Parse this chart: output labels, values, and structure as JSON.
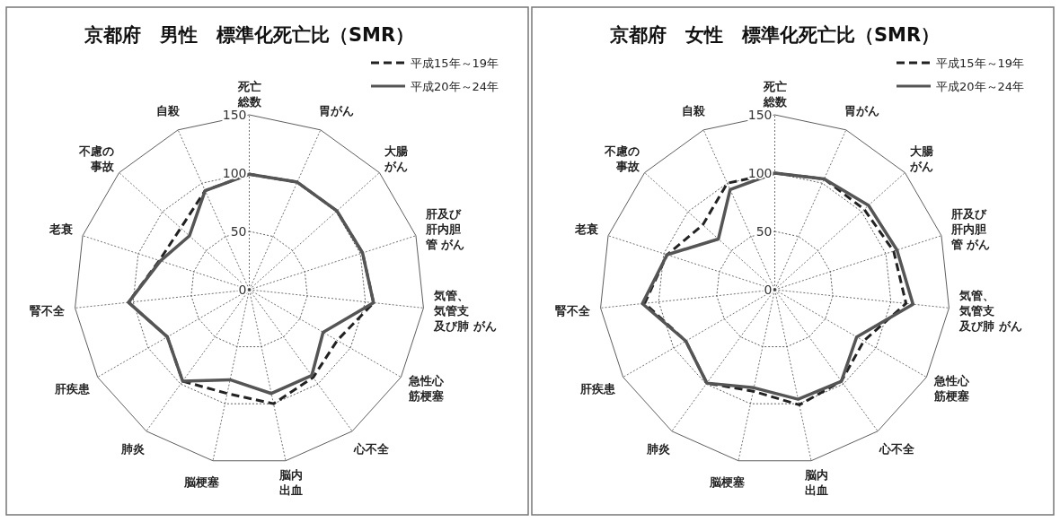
{
  "chart_data": [
    {
      "type": "radar",
      "title": "京都府　男性　標準化死亡比（SMR）",
      "categories": [
        "死亡総数",
        "胃がん",
        "大腸がん",
        "肝及び肝内胆管 がん",
        "気管、気管支及び肺 がん",
        "急性心筋梗塞",
        "心不全",
        "脳内出血",
        "脳梗塞",
        "肺炎",
        "肝疾患",
        "腎不全",
        "老衰",
        "不慮の事故",
        "自殺"
      ],
      "ylim": [
        0,
        150
      ],
      "yticks": [
        0,
        50,
        100,
        150
      ],
      "grid": true,
      "legend": "top right",
      "marker": "none",
      "series": [
        {
          "name": "平成15年～19年",
          "color": "#222222",
          "line_style": "dashed",
          "values": [
            99,
            101,
            101,
            102,
            107,
            87,
            93,
            100,
            91,
            97,
            81,
            104,
            81,
            79,
            93
          ]
        },
        {
          "name": "平成20年～24年",
          "color": "#555555",
          "line_style": "solid",
          "values": [
            99,
            101,
            101,
            102,
            107,
            73,
            91,
            91,
            79,
            97,
            81,
            104,
            80,
            69,
            93
          ]
        }
      ]
    },
    {
      "type": "radar",
      "title": "京都府　女性　標準化死亡比（SMR）",
      "categories": [
        "死亡総数",
        "胃がん",
        "大腸がん",
        "肝及び肝内胆管 がん",
        "気管、気管支及び肺 がん",
        "急性心筋梗塞",
        "心不全",
        "脳内出血",
        "脳梗塞",
        "肺炎",
        "肝疾患",
        "腎不全",
        "老衰",
        "不慮の事故",
        "自殺"
      ],
      "ylim": [
        0,
        150
      ],
      "yticks": [
        0,
        50,
        100,
        150
      ],
      "grid": true,
      "legend": "top right",
      "marker": "none",
      "series": [
        {
          "name": "平成15年～19年",
          "color": "#222222",
          "line_style": "dashed",
          "values": [
            100,
            104,
            103,
            107,
            113,
            88,
            97,
            101,
            89,
            99,
            88,
            112,
            97,
            83,
            100
          ]
        },
        {
          "name": "平成20年～24年",
          "color": "#555555",
          "line_style": "solid",
          "values": [
            100,
            104,
            108,
            110,
            119,
            81,
            97,
            96,
            86,
            99,
            88,
            114,
            97,
            65,
            94
          ]
        }
      ]
    }
  ]
}
